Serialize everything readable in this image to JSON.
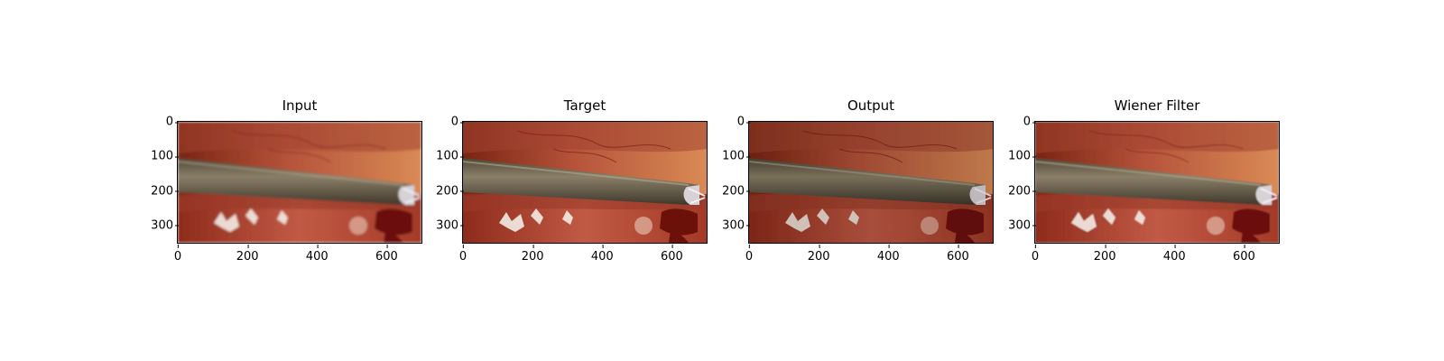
{
  "figure": {
    "panels": [
      {
        "title": "Input",
        "image_label": "laparoscopic scene with surgical instrument",
        "variant": "input"
      },
      {
        "title": "Target",
        "image_label": "laparoscopic scene with surgical instrument",
        "variant": "target"
      },
      {
        "title": "Output",
        "image_label": "laparoscopic scene with surgical instrument",
        "variant": "output"
      },
      {
        "title": "Wiener Filter",
        "image_label": "laparoscopic scene with surgical instrument",
        "variant": "wiener"
      }
    ],
    "y_ticks": [
      "0",
      "100",
      "200",
      "300"
    ],
    "x_ticks": [
      "0",
      "200",
      "400",
      "600"
    ],
    "image_extent": {
      "width": 700,
      "height": 350
    }
  }
}
